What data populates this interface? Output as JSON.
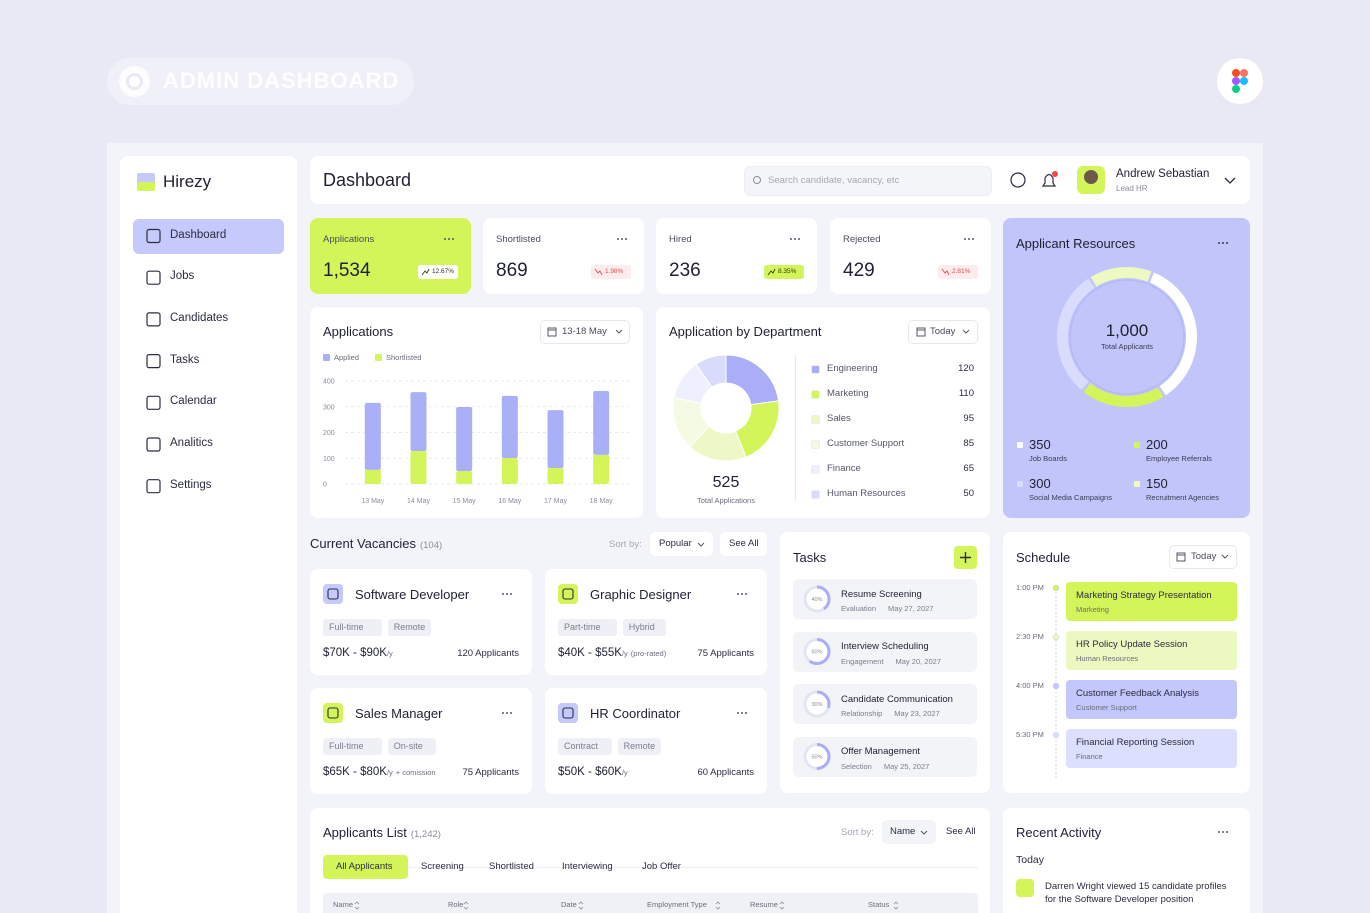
{
  "header": {
    "title": "ADMIN DASHBOARD"
  },
  "sidebar": {
    "brand": "Hirezy",
    "nav": [
      "Dashboard",
      "Jobs",
      "Candidates",
      "Tasks",
      "Calendar",
      "Analitics",
      "Settings"
    ]
  },
  "topbar": {
    "title": "Dashboard",
    "search_placeholder": "Search candidate, vacancy, etc",
    "user": {
      "name": "Andrew Sebastian",
      "role": "Lead HR"
    }
  },
  "stats": [
    {
      "label": "Applications",
      "value": "1,534",
      "change": "12.67%",
      "trend": "up"
    },
    {
      "label": "Shortlisted",
      "value": "869",
      "change": "1.98%",
      "trend": "down"
    },
    {
      "label": "Hired",
      "value": "236",
      "change": "8.35%",
      "trend": "up"
    },
    {
      "label": "Rejected",
      "value": "429",
      "change": "2.81%",
      "trend": "down"
    }
  ],
  "applications_chart": {
    "type": "bar",
    "title": "Applications",
    "range": "13-18 May",
    "categories": [
      "13 May",
      "14 May",
      "15 May",
      "16 May",
      "17 May",
      "18 May"
    ],
    "series": [
      {
        "name": "Applied",
        "color": "#aab0f7",
        "values": [
          260,
          229,
          249,
          241,
          225,
          248
        ]
      },
      {
        "name": "Shortlisted",
        "color": "#d4f55a",
        "values": [
          55,
          128,
          50,
          101,
          62,
          113
        ]
      }
    ],
    "stacked": true,
    "ylim": [
      0,
      400
    ],
    "yticks": [
      0,
      100,
      200,
      300,
      400
    ],
    "grid": true
  },
  "department_chart": {
    "type": "pie",
    "title": "Application by Department",
    "range": "Today",
    "total": "525",
    "total_label": "Total Applications",
    "categories": [
      "Engineering",
      "Marketing",
      "Sales",
      "Customer Support",
      "Finance",
      "Human Resources"
    ],
    "values": [
      120,
      110,
      95,
      85,
      65,
      50
    ],
    "colors": [
      "#a9aef7",
      "#d4f55a",
      "#eef8c6",
      "#f5fae2",
      "#eff0fd",
      "#d8dbfc"
    ]
  },
  "applicant_resources": {
    "type": "pie",
    "title": "Applicant Resources",
    "total": "1,000",
    "total_label": "Total Applicants",
    "categories": [
      "Job Boards",
      "Employee Referrals",
      "Social Media Campaigns",
      "Recruitment Agencies"
    ],
    "values": [
      350,
      200,
      300,
      150
    ],
    "colors": [
      "#ffffff",
      "#d4f55a",
      "#d9dcfd",
      "#eef9c2"
    ]
  },
  "vacancies": {
    "title": "Current Vacancies",
    "count": "(104)",
    "sort_label": "Sort by:",
    "sort": "Popular",
    "see_all": "See All",
    "jobs": [
      {
        "title": "Software Developer",
        "tags": [
          "Full-time",
          "Remote"
        ],
        "salary": "$70K - $90K",
        "period": "/y",
        "note": null,
        "applicants": "120 Applicants"
      },
      {
        "title": "Graphic Designer",
        "tags": [
          "Part-time",
          "Hybrid"
        ],
        "salary": "$40K - $55K",
        "period": "/y",
        "note": "(pro-rated)",
        "applicants": "75 Applicants"
      },
      {
        "title": "Sales Manager",
        "tags": [
          "Full-time",
          "On-site"
        ],
        "salary": "$65K - $80K",
        "period": "/y",
        "note": "+ comission",
        "applicants": "75 Applicants"
      },
      {
        "title": "HR Coordinator",
        "tags": [
          "Contract",
          "Remote"
        ],
        "salary": "$50K - $60K",
        "period": "/y",
        "note": null,
        "applicants": "60 Applicants"
      }
    ]
  },
  "tasks": {
    "title": "Tasks",
    "items": [
      {
        "title": "Resume Screening",
        "category": "Evaluation",
        "date": "May 27, 2027",
        "progress": {
          "value": 40,
          "label": "40%"
        }
      },
      {
        "title": "Interview Scheduling",
        "category": "Engagement",
        "date": "May 20, 2027",
        "progress": {
          "value": 60,
          "label": "60%"
        }
      },
      {
        "title": "Candidate Communication",
        "category": "Relationship",
        "date": "May 23, 2027",
        "progress": {
          "value": 30,
          "label": "30%"
        }
      },
      {
        "title": "Offer Management",
        "category": "Selection",
        "date": "May 25, 2027",
        "progress": {
          "value": 50,
          "label": "50%"
        }
      }
    ]
  },
  "schedule": {
    "title": "Schedule",
    "range": "Today",
    "events": [
      {
        "time": "1:00 PM",
        "title": "Marketing Strategy Presentation",
        "category": "Marketing",
        "color": "#d4f55a"
      },
      {
        "time": "2:30 PM",
        "title": "HR Policy Update Session",
        "category": "Human Resources",
        "color": "#ebf8bf"
      },
      {
        "time": "4:00 PM",
        "title": "Customer Feedback Analysis",
        "category": "Customer Support",
        "color": "#c3c7fb"
      },
      {
        "time": "5:30 PM",
        "title": "Financial Reporting Session",
        "category": "Finance",
        "color": "#dcdffd"
      }
    ]
  },
  "applicants_list": {
    "title": "Applicants List",
    "count": "(1,242)",
    "sort_label": "Sort by:",
    "sort": "Name",
    "see_all": "See All",
    "tabs": [
      "All Applicants",
      "Screening",
      "Shortlisted",
      "Interviewing",
      "Job Offer"
    ],
    "columns": [
      "Name",
      "Role",
      "Date",
      "Employment Type",
      "Resume",
      "Status"
    ]
  },
  "recent_activity": {
    "title": "Recent Activity",
    "group": "Today",
    "items": [
      {
        "text": "Darren Wright viewed 15 candidate profiles for the Software Developer position"
      }
    ]
  }
}
